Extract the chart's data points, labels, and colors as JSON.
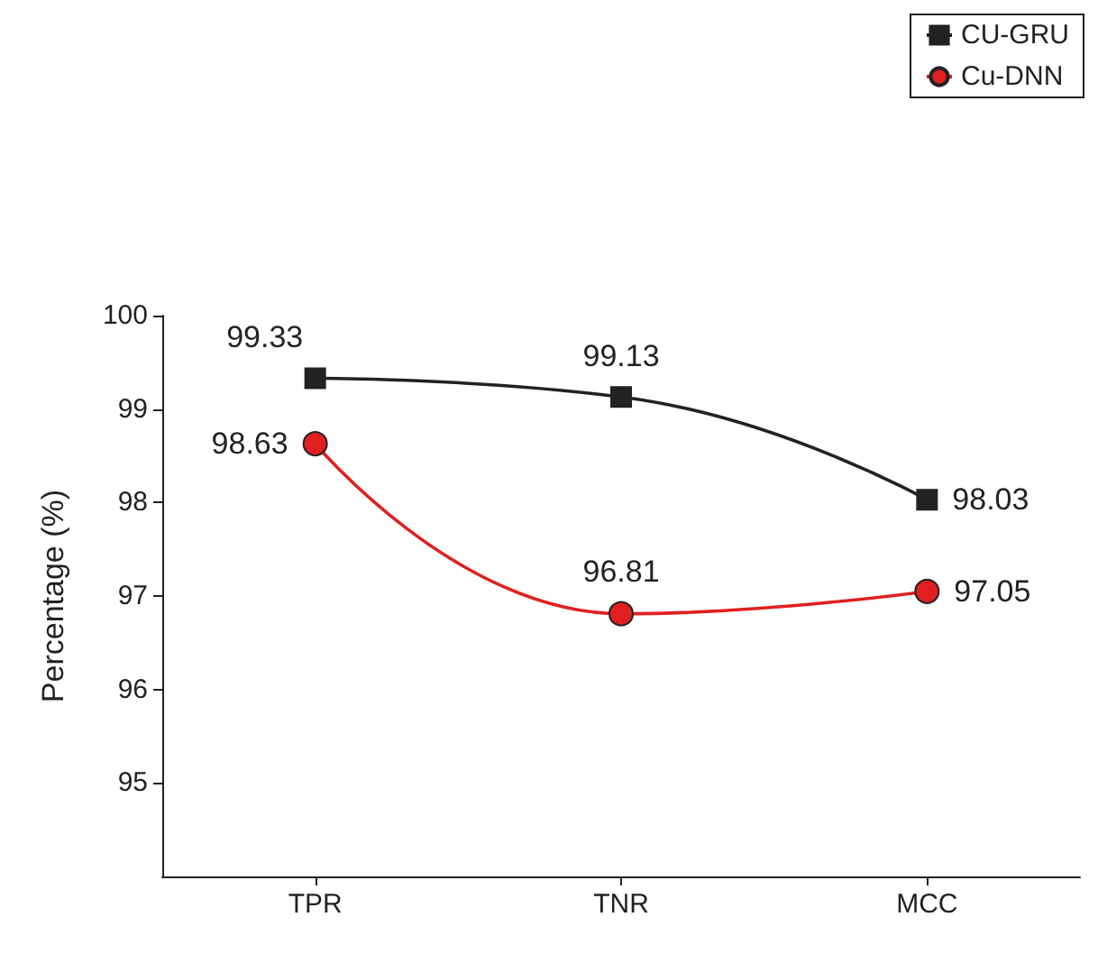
{
  "chart_data": {
    "type": "line",
    "ylabel": "Percentage (%)",
    "categories": [
      "TPR",
      "TNR",
      "MCC"
    ],
    "series": [
      {
        "name": "CU-GRU",
        "color": "#222222",
        "marker": "square",
        "values": [
          99.33,
          99.13,
          98.03
        ]
      },
      {
        "name": "Cu-DNN",
        "color": "#e02020",
        "marker": "circle",
        "values": [
          98.63,
          96.81,
          97.05
        ]
      }
    ],
    "ylim": [
      94,
      100
    ],
    "yticks": [
      95,
      96,
      97,
      98,
      99,
      100
    ],
    "data_labels": true,
    "legend": "top right",
    "grid": false
  }
}
